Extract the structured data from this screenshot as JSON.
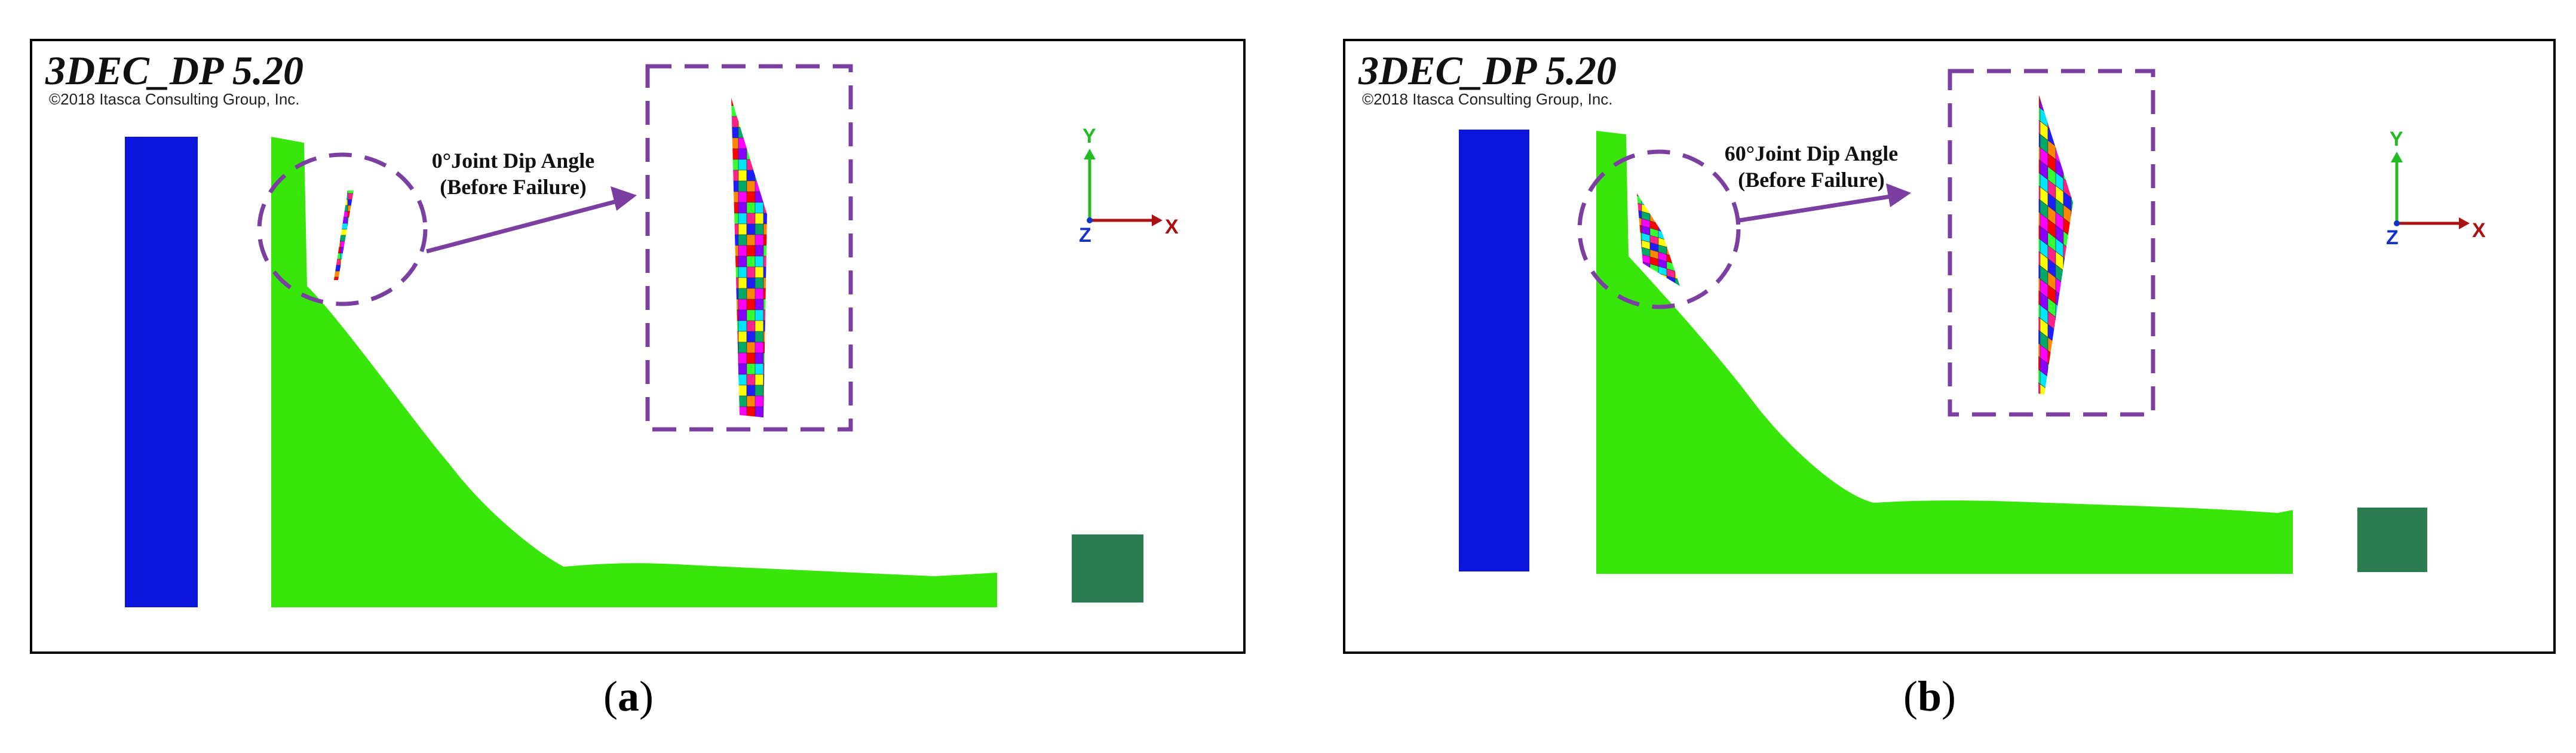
{
  "panels": [
    {
      "id": "a",
      "software_title": "3DEC_DP 5.20",
      "copyright": "©2018 Itasca Consulting Group, Inc.",
      "annotation_line1": "0°Joint Dip Angle",
      "annotation_line2": "(Before Failure)",
      "axes": {
        "y": "Y",
        "x": "X",
        "z": "Z"
      },
      "caption_open": "(",
      "caption_letter": "a",
      "caption_close": ")"
    },
    {
      "id": "b",
      "software_title": "3DEC_DP 5.20",
      "copyright": "©2018 Itasca Consulting Group, Inc.",
      "annotation_line1": "60°Joint Dip Angle",
      "annotation_line2": "(Before Failure)",
      "axes": {
        "y": "Y",
        "x": "X",
        "z": "Z"
      },
      "caption_open": "(",
      "caption_letter": "b",
      "caption_close": ")"
    }
  ],
  "colors": {
    "slope": "#39e60a",
    "left_block": "#0a14dc",
    "right_block": "#2a7d50",
    "dashed": "#7a3fa0",
    "axis_y": "#22bb22",
    "axis_x": "#aa1111",
    "axis_z": "#1133cc",
    "mosaic": [
      "#ff0000",
      "#00e5ff",
      "#1d1dff",
      "#ff00ff",
      "#33ff33",
      "#ffff00",
      "#ff8800",
      "#8800ff",
      "#ff2288",
      "#00aa66"
    ]
  }
}
